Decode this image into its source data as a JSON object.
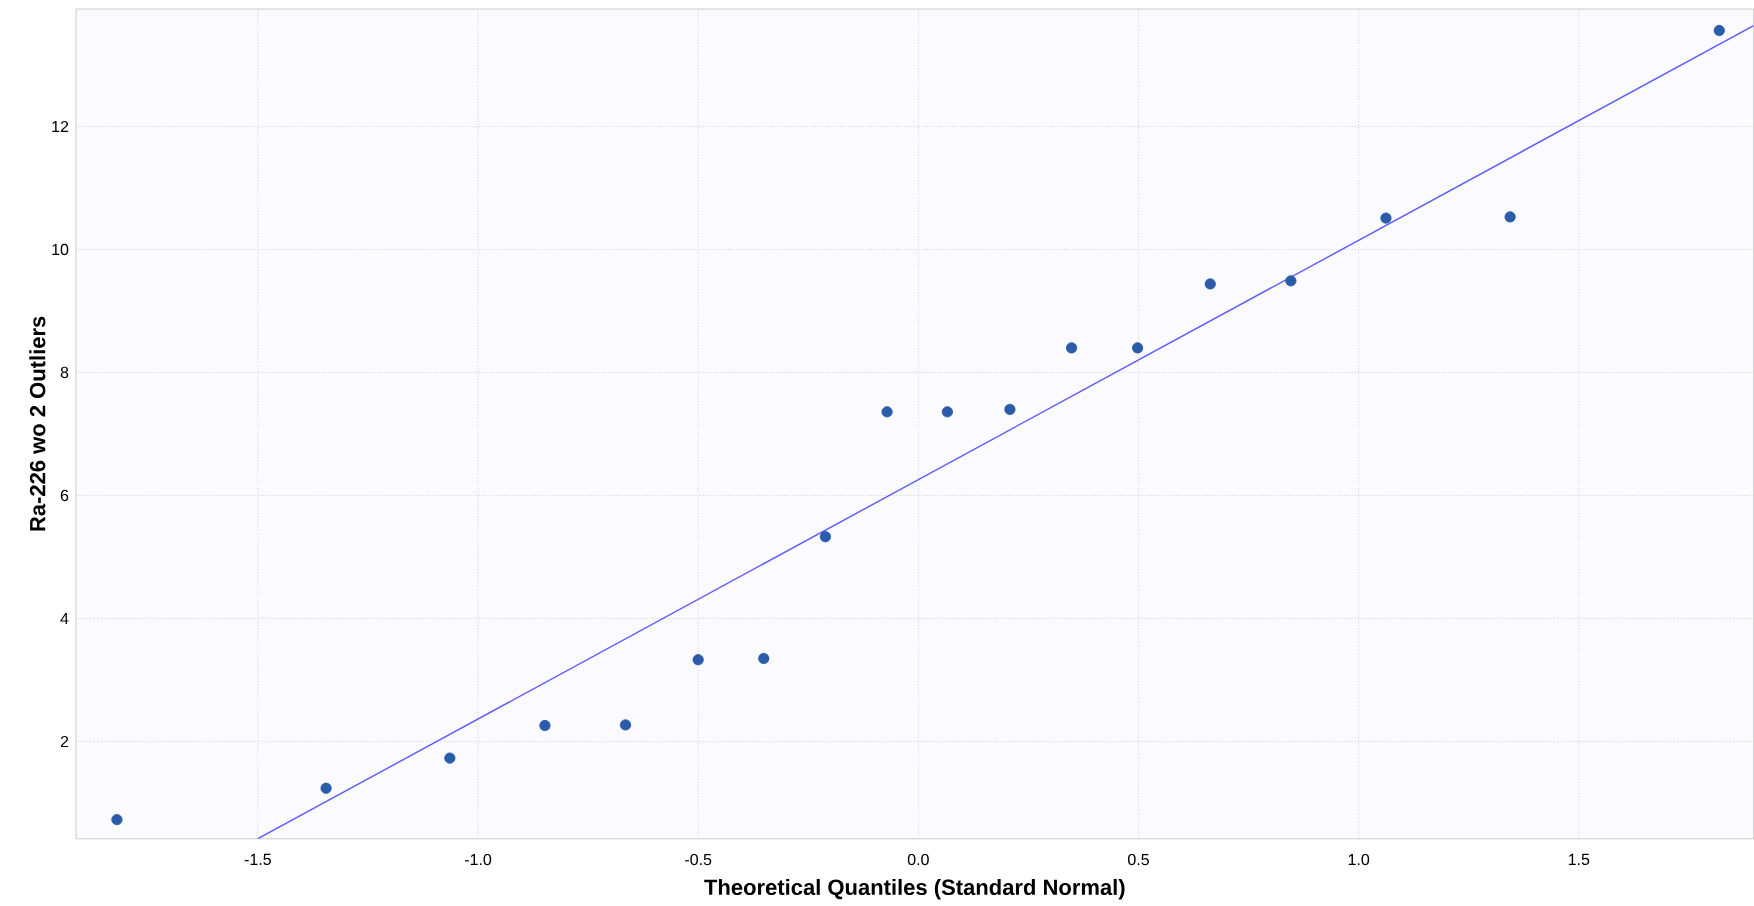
{
  "chart_data": {
    "type": "scatter",
    "xlabel": "Theoretical Quantiles (Standard Normal)",
    "ylabel": "Ra-226 wo 2 Outliers",
    "xlim": [
      -1.913,
      1.897
    ],
    "ylim": [
      0.418,
      13.91
    ],
    "xticks": [
      -1.5,
      {
        "value": -1.0,
        "label": "-1.0"
      },
      -0.5,
      {
        "value": 0.0,
        "label": "0.0"
      },
      0.5,
      {
        "value": 1.0,
        "label": "1.0"
      },
      1.5
    ],
    "yticks": [
      2,
      4,
      6,
      8,
      10,
      12
    ],
    "grid": true,
    "marker": "circle",
    "series": [
      {
        "type": "scatter",
        "color": "#2a5caa",
        "x": [
          -1.82,
          -1.345,
          -1.064,
          -0.848,
          -0.665,
          -0.5,
          -0.351,
          -0.211,
          -0.071,
          0.066,
          0.208,
          0.348,
          0.498,
          0.663,
          0.846,
          1.062,
          1.344,
          1.819
        ],
        "values": [
          0.73,
          1.24,
          1.73,
          2.26,
          2.27,
          3.33,
          3.35,
          5.33,
          7.36,
          7.36,
          7.4,
          8.4,
          8.4,
          9.44,
          9.49,
          10.51,
          10.53,
          13.56
        ]
      },
      {
        "type": "line",
        "marker": "none",
        "color": "#5a5aff",
        "x": [
          -1.5,
          1.897
        ],
        "values": [
          0.42,
          13.64
        ]
      }
    ]
  }
}
